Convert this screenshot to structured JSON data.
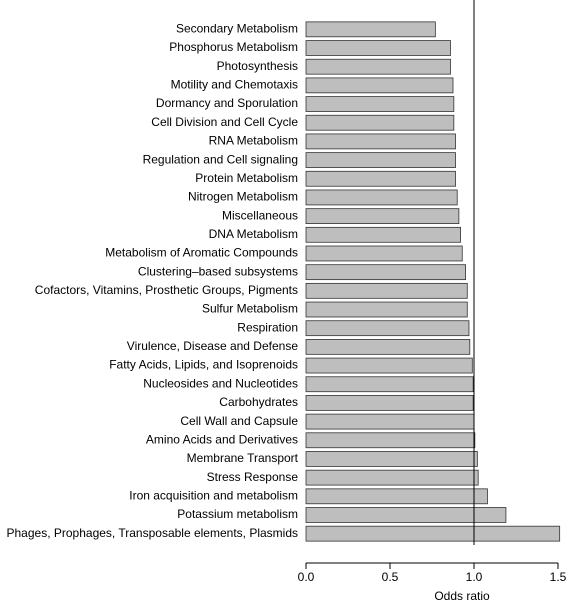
{
  "chart_data": {
    "type": "barh",
    "xlabel": "Odds ratio",
    "categories": [
      "Secondary Metabolism",
      "Phosphorus Metabolism",
      "Photosynthesis",
      "Motility and Chemotaxis",
      "Dormancy and Sporulation",
      "Cell Division and Cell Cycle",
      "RNA Metabolism",
      "Regulation and Cell signaling",
      "Protein Metabolism",
      "Nitrogen Metabolism",
      "Miscellaneous",
      "DNA Metabolism",
      "Metabolism of Aromatic Compounds",
      "Clustering–based subsystems",
      "Cofactors, Vitamins, Prosthetic Groups, Pigments",
      "Sulfur Metabolism",
      "Respiration",
      "Virulence, Disease and Defense",
      "Fatty Acids, Lipids, and Isoprenoids",
      "Nucleosides and Nucleotides",
      "Carbohydrates",
      "Cell Wall and Capsule",
      "Amino Acids and Derivatives",
      "Membrane Transport",
      "Stress Response",
      "Iron acquisition and metabolism",
      "Potassium metabolism",
      "Phages, Prophages, Transposable elements, Plasmids"
    ],
    "values": [
      0.77,
      0.86,
      0.86,
      0.875,
      0.88,
      0.88,
      0.89,
      0.89,
      0.89,
      0.9,
      0.91,
      0.92,
      0.93,
      0.95,
      0.96,
      0.96,
      0.97,
      0.975,
      0.99,
      0.995,
      0.995,
      1.0,
      1.005,
      1.02,
      1.025,
      1.08,
      1.19,
      1.51
    ],
    "color": "#bebebe",
    "xlim": [
      0,
      1.5
    ],
    "xticks": [
      {
        "value": 0,
        "label": "0.0"
      },
      0.5,
      {
        "value": 1,
        "label": "1.0"
      },
      1.5
    ],
    "reference_line": 1
  }
}
